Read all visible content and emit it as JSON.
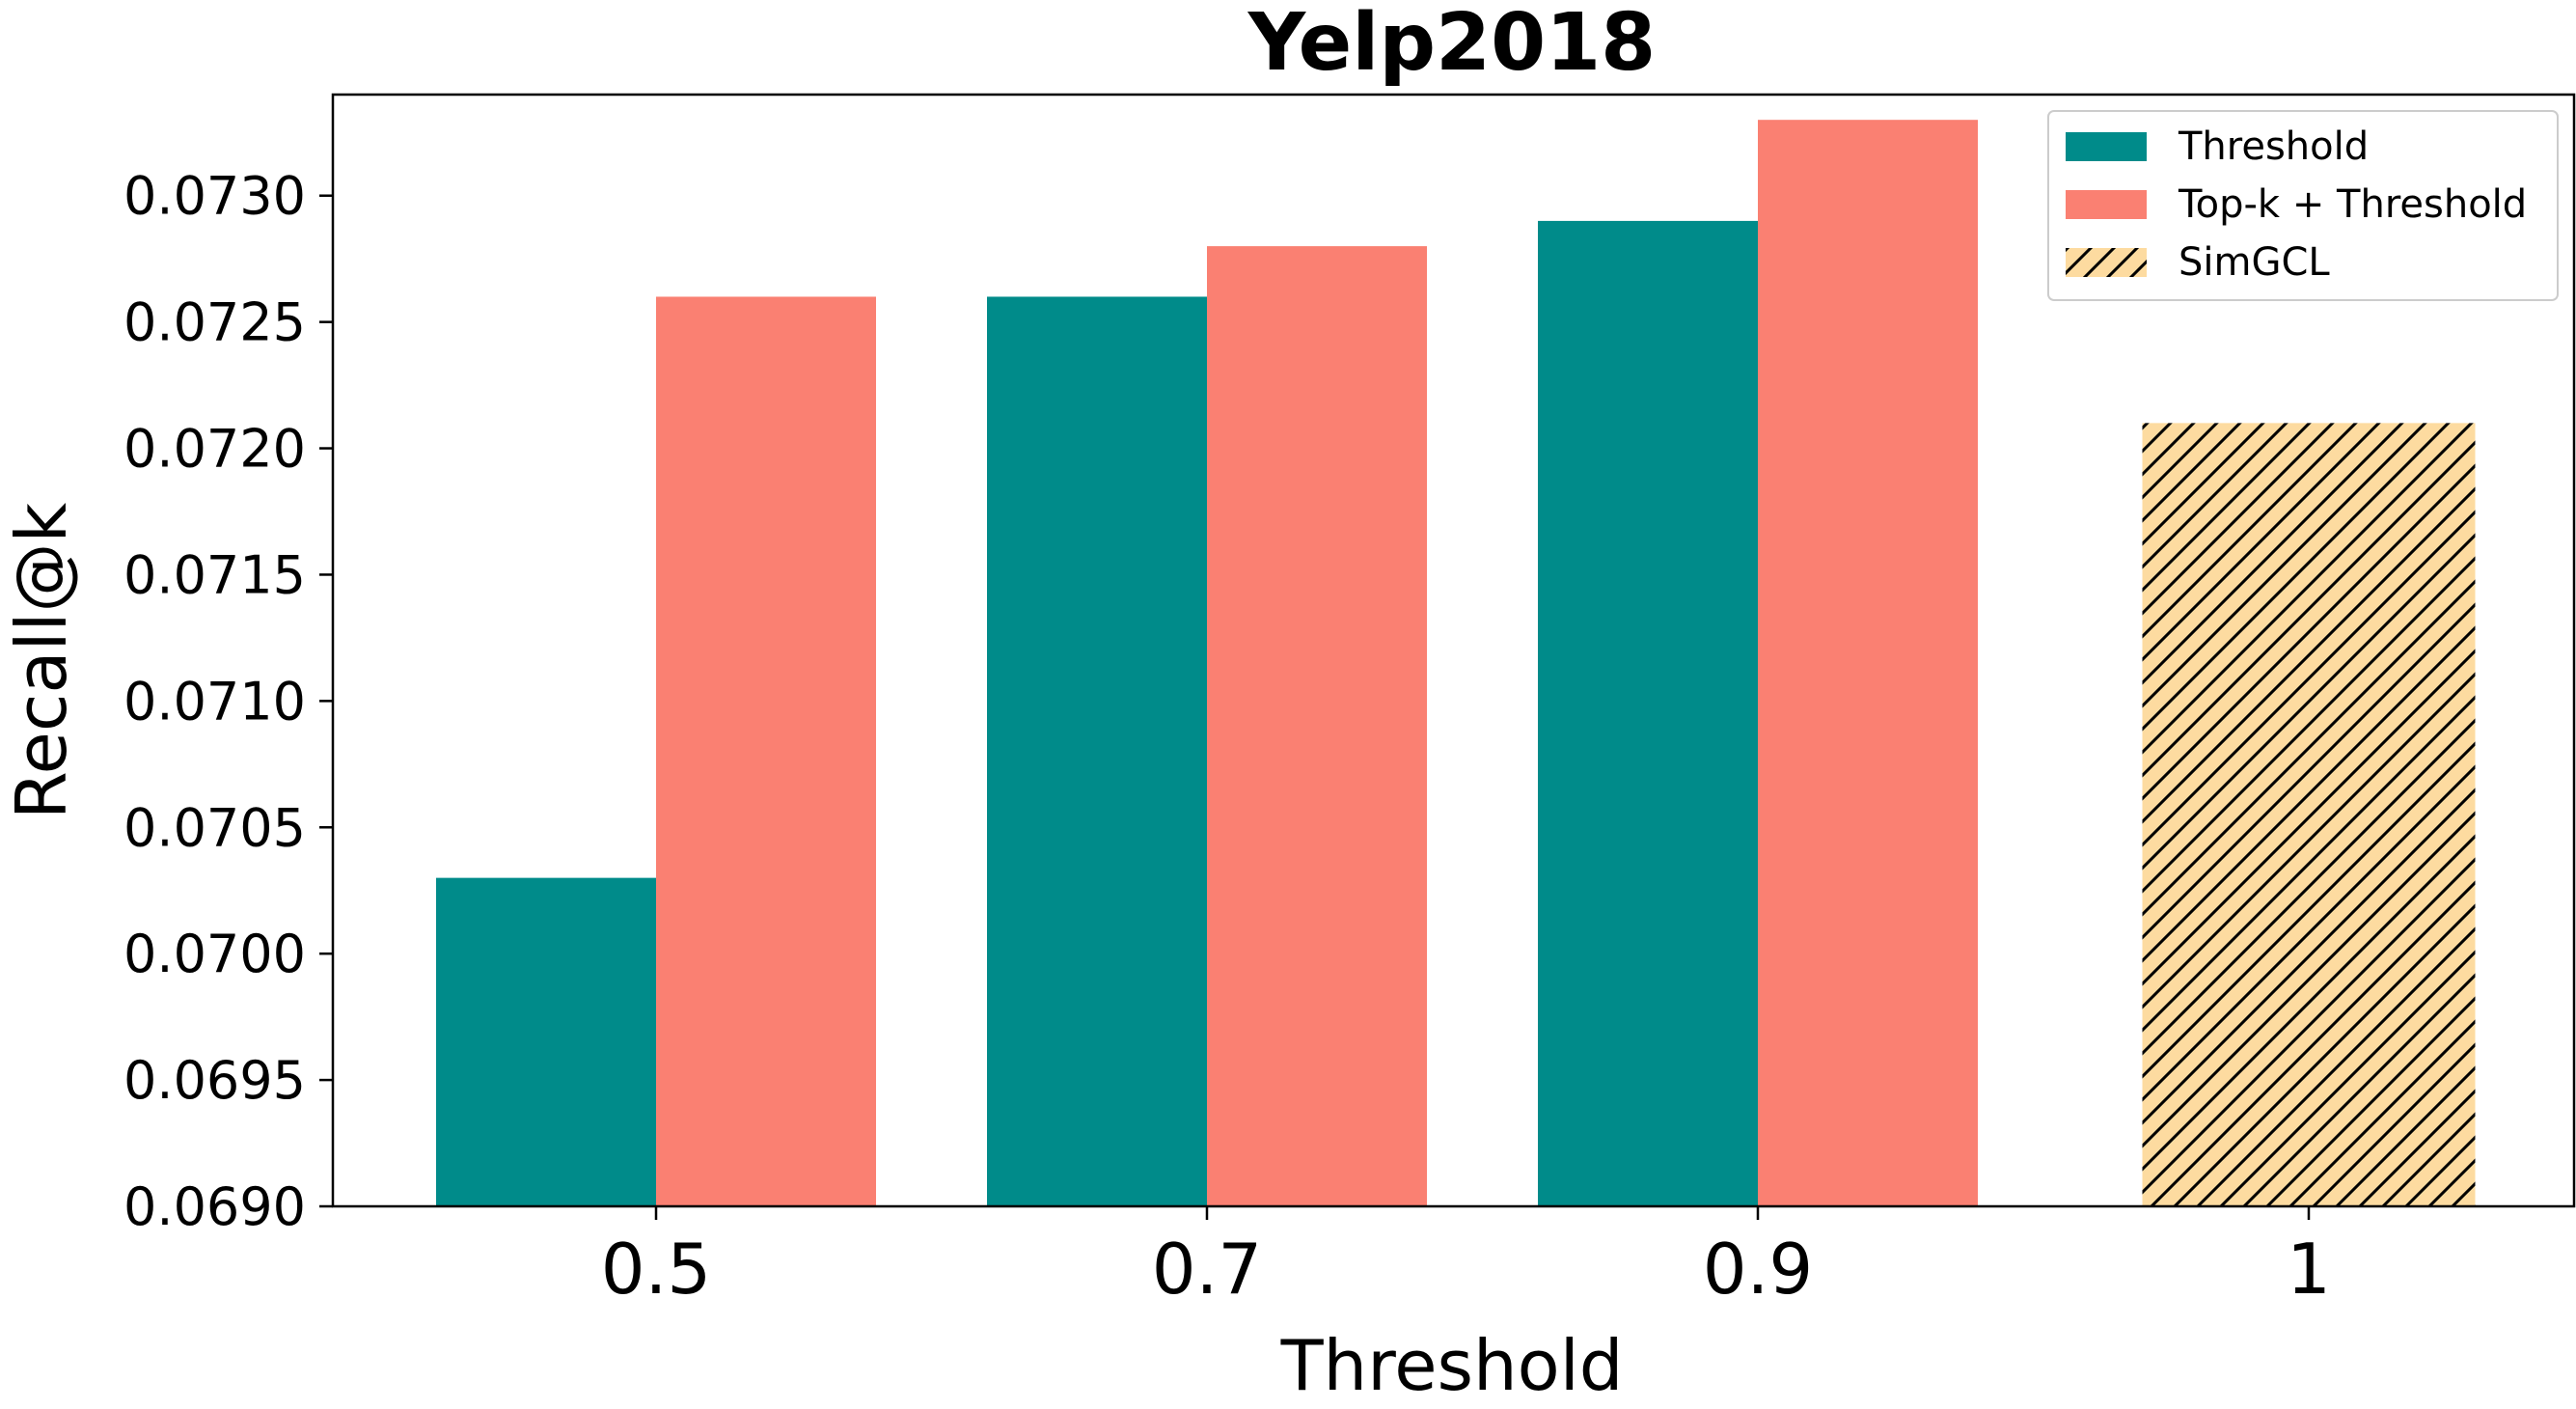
{
  "chart_data": {
    "type": "bar",
    "title": "Yelp2018",
    "xlabel": "Threshold",
    "ylabel": "Recall@k",
    "categories": [
      "0.5",
      "0.7",
      "0.9",
      "1"
    ],
    "ylim": [
      0.069,
      0.0734
    ],
    "yticks": [
      "0.0690",
      "0.0695",
      "0.0700",
      "0.0705",
      "0.0710",
      "0.0715",
      "0.0720",
      "0.0725",
      "0.0730"
    ],
    "grid": false,
    "legend_position": "top-right",
    "series": [
      {
        "name": "Threshold",
        "color": "#008B8A",
        "hatch": false,
        "values": [
          0.0703,
          0.0726,
          0.0729,
          null
        ]
      },
      {
        "name": "Top-k + Threshold",
        "color": "#FA8072",
        "hatch": false,
        "values": [
          0.0726,
          0.0728,
          0.0733,
          null
        ]
      },
      {
        "name": "SimGCL",
        "color": "#FDDBA0",
        "hatch": true,
        "values": [
          null,
          null,
          null,
          0.0721
        ]
      }
    ]
  }
}
